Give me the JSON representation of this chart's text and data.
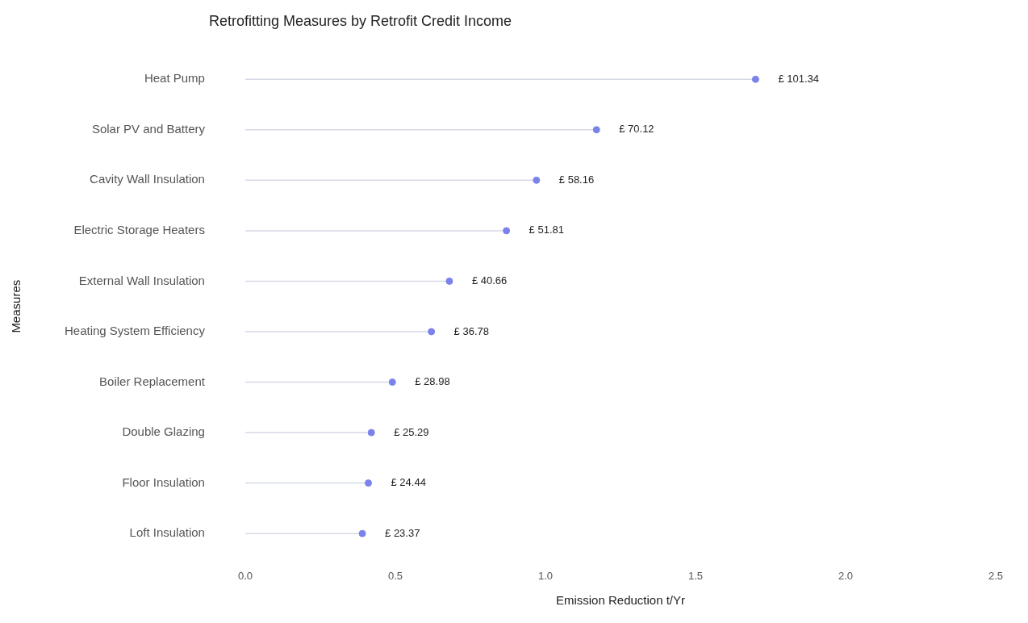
{
  "chart_data": {
    "type": "lollipop",
    "title": "Retrofitting Measures by Retrofit Credit Income",
    "orientation": "horizontal",
    "xlabel": "Emission Reduction t/Yr",
    "ylabel": "Measures",
    "categories": [
      "Heat Pump",
      "Solar PV and Battery",
      "Cavity Wall Insulation",
      "Electric Storage Heaters",
      "External Wall Insulation",
      "Heating System Efficiency",
      "Boiler Replacement",
      "Double Glazing",
      "Floor Insulation",
      "Loft Insulation"
    ],
    "values": [
      1.7,
      1.17,
      0.97,
      0.87,
      0.68,
      0.62,
      0.49,
      0.42,
      0.41,
      0.39
    ],
    "annotations": [
      {
        "text": "£ 101.34",
        "x": 1.7,
        "y": "Heat Pump"
      },
      {
        "text": "£ 70.12",
        "x": 1.17,
        "y": "Solar PV and Battery"
      },
      {
        "text": "£ 58.16",
        "x": 0.97,
        "y": "Cavity Wall Insulation"
      },
      {
        "text": "£ 51.81",
        "x": 0.87,
        "y": "Electric Storage Heaters"
      },
      {
        "text": "£ 40.66",
        "x": 0.68,
        "y": "External Wall Insulation"
      },
      {
        "text": "£ 36.78",
        "x": 0.62,
        "y": "Heating System Efficiency"
      },
      {
        "text": "£ 28.98",
        "x": 0.49,
        "y": "Boiler Replacement"
      },
      {
        "text": "£ 25.29",
        "x": 0.42,
        "y": "Double Glazing"
      },
      {
        "text": "£ 24.44",
        "x": 0.41,
        "y": "Floor Insulation"
      },
      {
        "text": "£ 23.37",
        "x": 0.39,
        "y": "Loft Insulation"
      }
    ],
    "color": "#7b83eb",
    "marker": "circle",
    "xlim": [
      0,
      2.5
    ],
    "xticks": [
      {
        "value": 0,
        "label": "0.0"
      },
      {
        "value": 0.5,
        "label": "0.5"
      },
      {
        "value": 1,
        "label": "1.0"
      },
      {
        "value": 1.5,
        "label": "1.5"
      },
      {
        "value": 2,
        "label": "2.0"
      },
      {
        "value": 2.5,
        "label": "2.5"
      }
    ],
    "grid": false,
    "legend": false
  }
}
